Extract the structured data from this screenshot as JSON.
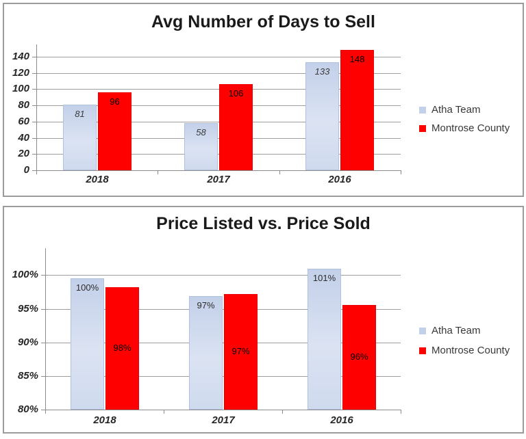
{
  "colors": {
    "page_bg": "#ffffff",
    "panel_border": "#9b9b9b",
    "grid": "#9d9d9d",
    "axis": "#8c8c8c",
    "axis_text": "#262626",
    "title_text": "#1a1a1a",
    "legend_text": "#383838",
    "atha_fill": "#ccd8ee",
    "montrose_fill": "#fe0000"
  },
  "chart_data": [
    {
      "type": "bar",
      "title": "Avg Number of Days to Sell",
      "categories": [
        "2018",
        "2017",
        "2016"
      ],
      "series": [
        {
          "name": "Atha Team",
          "values": [
            81,
            58,
            133
          ],
          "data_labels": [
            "81",
            "58",
            "133"
          ],
          "fill": [
            "#c3d0e9",
            "#dbe3f3",
            "#cfdaee"
          ],
          "border": "#b0c0dd",
          "label_color": "#3a3a3a",
          "label_italic": true,
          "label_position": "inside-end"
        },
        {
          "name": "Montrose County",
          "values": [
            96,
            106,
            148
          ],
          "data_labels": [
            "96",
            "106",
            "148"
          ],
          "fill": [
            "#fe0000"
          ],
          "border": "#ea0000",
          "label_color": "#000000",
          "label_italic": false,
          "label_position": "inside-end"
        }
      ],
      "ylim": [
        0,
        155
      ],
      "yticks": [
        {
          "value": 0,
          "label": "0"
        },
        {
          "value": 20,
          "label": "20"
        },
        {
          "value": 40,
          "label": "40"
        },
        {
          "value": 60,
          "label": "60"
        },
        {
          "value": 80,
          "label": "80"
        },
        {
          "value": 100,
          "label": "100"
        },
        {
          "value": 120,
          "label": "120"
        },
        {
          "value": 140,
          "label": "140"
        }
      ],
      "grid": true,
      "legend_position": "right"
    },
    {
      "type": "bar",
      "title": "Price Listed vs. Price Sold",
      "categories": [
        "2018",
        "2017",
        "2016"
      ],
      "series": [
        {
          "name": "Atha Team",
          "values": [
            100,
            97,
            101
          ],
          "data_labels": [
            "100%",
            "97%",
            "101%"
          ],
          "render_values": [
            99.5,
            96.9,
            101.0
          ],
          "fill": [
            "#c3d0e9",
            "#dbe3f3",
            "#cfdaee"
          ],
          "border": "#b0c0dd",
          "label_color": "#2b2b2b",
          "label_italic": false,
          "label_position": "inside-end"
        },
        {
          "name": "Montrose County",
          "values": [
            98,
            97,
            96
          ],
          "data_labels": [
            "98%",
            "97%",
            "96%"
          ],
          "render_values": [
            98.2,
            97.2,
            95.6
          ],
          "fill": [
            "#fe0000"
          ],
          "border": "#ea0000",
          "label_color": "#000000",
          "label_italic": false,
          "label_position": "center"
        }
      ],
      "ylim": [
        80,
        104
      ],
      "yticks": [
        {
          "value": 80,
          "label": "80%"
        },
        {
          "value": 85,
          "label": "85%"
        },
        {
          "value": 90,
          "label": "90%"
        },
        {
          "value": 95,
          "label": "95%"
        },
        {
          "value": 100,
          "label": "100%"
        }
      ],
      "grid": true,
      "legend_position": "right"
    }
  ]
}
